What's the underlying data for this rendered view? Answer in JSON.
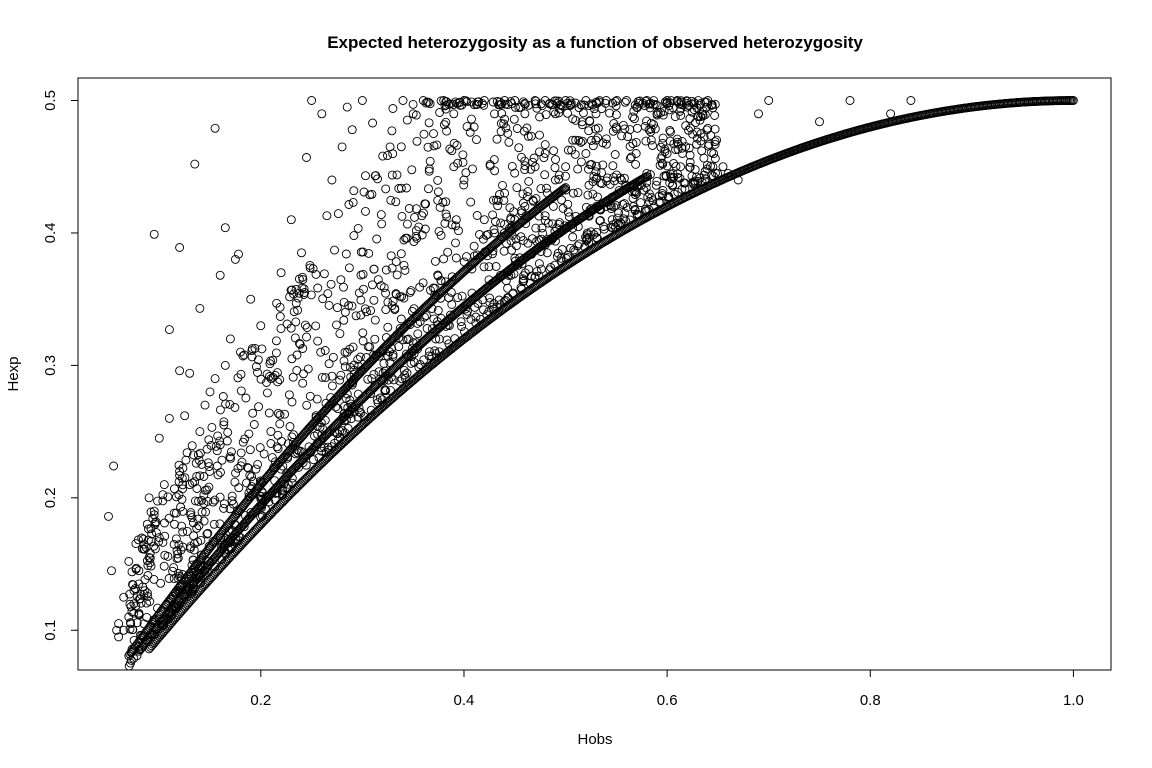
{
  "chart_data": {
    "type": "scatter",
    "title": "Expected heterozygosity as a function of observed heterozygosity",
    "xlabel": "Hobs",
    "ylabel": "Hexp",
    "xlim": [
      0.02,
      1.037
    ],
    "ylim": [
      0.07,
      0.517
    ],
    "xticks": [
      0.2,
      0.4,
      0.6,
      0.8,
      1.0
    ],
    "xtick_labels": [
      "0.2",
      "0.4",
      "0.6",
      "0.8",
      "1.0"
    ],
    "yticks": [
      0.1,
      0.2,
      0.3,
      0.4,
      0.5
    ],
    "ytick_labels": [
      "0.1",
      "0.2",
      "0.3",
      "0.4",
      "0.5"
    ],
    "marker": "open-circle",
    "grid": false,
    "curves": [
      {
        "relation": "Hexp = 1 - (1 - Hobs/2)^2 - (Hobs/2)^2",
        "x_range": [
          0.09,
          1.0
        ],
        "n_points": 700
      },
      {
        "relation": "Hexp = 0.5 - |1 - Hobs - 1/n|^2 ... (n ≈ 60)",
        "x_range": [
          0.08,
          0.58
        ],
        "n_points": 450
      },
      {
        "relation": "Hexp = 0.5 - |1 - Hobs - 1/n|^2 ... (n ≈ 30)",
        "x_range": [
          0.07,
          0.5
        ],
        "n_points": 380
      }
    ],
    "points": [
      [
        0.05,
        0.186
      ],
      [
        0.055,
        0.224
      ],
      [
        0.053,
        0.145
      ],
      [
        0.06,
        0.105
      ],
      [
        0.065,
        0.125
      ],
      [
        0.07,
        0.152
      ],
      [
        0.075,
        0.13
      ],
      [
        0.08,
        0.145
      ],
      [
        0.095,
        0.399
      ],
      [
        0.12,
        0.389
      ],
      [
        0.155,
        0.479
      ],
      [
        0.135,
        0.452
      ],
      [
        0.165,
        0.404
      ],
      [
        0.175,
        0.38
      ],
      [
        0.178,
        0.384
      ],
      [
        0.11,
        0.327
      ],
      [
        0.12,
        0.296
      ],
      [
        0.13,
        0.294
      ],
      [
        0.14,
        0.343
      ],
      [
        0.16,
        0.368
      ],
      [
        0.1,
        0.245
      ],
      [
        0.11,
        0.26
      ],
      [
        0.125,
        0.262
      ],
      [
        0.09,
        0.2
      ],
      [
        0.095,
        0.19
      ],
      [
        0.105,
        0.21
      ],
      [
        0.1,
        0.17
      ],
      [
        0.115,
        0.18
      ],
      [
        0.12,
        0.22
      ],
      [
        0.13,
        0.21
      ],
      [
        0.14,
        0.25
      ],
      [
        0.085,
        0.165
      ],
      [
        0.09,
        0.155
      ],
      [
        0.08,
        0.135
      ],
      [
        0.075,
        0.12
      ],
      [
        0.07,
        0.11
      ],
      [
        0.065,
        0.1
      ],
      [
        0.06,
        0.095
      ],
      [
        0.058,
        0.1
      ],
      [
        0.145,
        0.27
      ],
      [
        0.15,
        0.28
      ],
      [
        0.155,
        0.29
      ],
      [
        0.16,
        0.24
      ],
      [
        0.165,
        0.3
      ],
      [
        0.17,
        0.32
      ],
      [
        0.18,
        0.31
      ],
      [
        0.19,
        0.35
      ],
      [
        0.2,
        0.33
      ],
      [
        0.21,
        0.29
      ],
      [
        0.22,
        0.37
      ],
      [
        0.23,
        0.41
      ],
      [
        0.24,
        0.385
      ],
      [
        0.245,
        0.457
      ],
      [
        0.25,
        0.5
      ],
      [
        0.26,
        0.49
      ],
      [
        0.265,
        0.413
      ],
      [
        0.27,
        0.44
      ],
      [
        0.28,
        0.465
      ],
      [
        0.285,
        0.495
      ],
      [
        0.29,
        0.478
      ],
      [
        0.3,
        0.5
      ],
      [
        0.31,
        0.483
      ],
      [
        0.32,
        0.458
      ],
      [
        0.33,
        0.494
      ],
      [
        0.34,
        0.5
      ],
      [
        0.35,
        0.49
      ],
      [
        0.36,
        0.5
      ],
      [
        0.37,
        0.475
      ],
      [
        0.38,
        0.5
      ],
      [
        0.39,
        0.49
      ],
      [
        0.4,
        0.5
      ],
      [
        0.41,
        0.48
      ],
      [
        0.42,
        0.5
      ],
      [
        0.43,
        0.49
      ],
      [
        0.44,
        0.5
      ],
      [
        0.45,
        0.5
      ],
      [
        0.46,
        0.49
      ],
      [
        0.47,
        0.5
      ],
      [
        0.48,
        0.5
      ],
      [
        0.49,
        0.49
      ],
      [
        0.5,
        0.5
      ],
      [
        0.51,
        0.485
      ],
      [
        0.52,
        0.5
      ],
      [
        0.53,
        0.49
      ],
      [
        0.54,
        0.5
      ],
      [
        0.55,
        0.48
      ],
      [
        0.56,
        0.5
      ],
      [
        0.57,
        0.495
      ],
      [
        0.58,
        0.5
      ],
      [
        0.59,
        0.49
      ],
      [
        0.6,
        0.5
      ],
      [
        0.61,
        0.5
      ],
      [
        0.62,
        0.495
      ],
      [
        0.63,
        0.488
      ],
      [
        0.64,
        0.5
      ],
      [
        0.66,
        0.445
      ],
      [
        0.67,
        0.44
      ],
      [
        0.69,
        0.49
      ],
      [
        0.7,
        0.5
      ],
      [
        0.75,
        0.484
      ],
      [
        0.78,
        0.5
      ],
      [
        0.82,
        0.49
      ],
      [
        0.84,
        0.5
      ],
      [
        0.615,
        0.46
      ],
      [
        0.595,
        0.458
      ],
      [
        0.6,
        0.46
      ],
      [
        0.655,
        0.45
      ],
      [
        0.58,
        0.445
      ],
      [
        0.57,
        0.43
      ],
      [
        0.555,
        0.44
      ],
      [
        0.47,
        0.45
      ],
      [
        0.48,
        0.46
      ],
      [
        0.49,
        0.44
      ],
      [
        0.5,
        0.45
      ],
      [
        0.51,
        0.47
      ],
      [
        0.52,
        0.46
      ],
      [
        0.53,
        0.47
      ],
      [
        0.54,
        0.42
      ],
      [
        0.44,
        0.43
      ],
      [
        0.45,
        0.41
      ],
      [
        0.46,
        0.42
      ],
      [
        0.43,
        0.4
      ],
      [
        0.42,
        0.41
      ],
      [
        0.41,
        0.39
      ],
      [
        0.4,
        0.44
      ],
      [
        0.39,
        0.45
      ]
    ]
  }
}
